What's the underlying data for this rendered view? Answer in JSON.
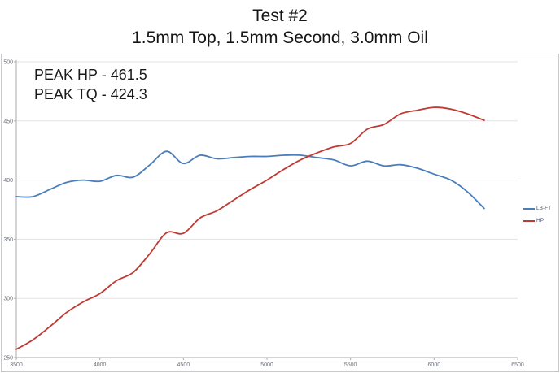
{
  "header": {
    "title": "Test #2",
    "subtitle": "1.5mm Top, 1.5mm Second, 3.0mm Oil"
  },
  "annotations": {
    "peak_hp": "PEAK HP - 461.5",
    "peak_tq": "PEAK TQ - 424.3"
  },
  "legend": {
    "items": [
      {
        "label": "LB-FT",
        "color": "#4a7ebb"
      },
      {
        "label": "HP",
        "color": "#bf3a32"
      }
    ]
  },
  "colors": {
    "torque_line": "#4a7ebb",
    "hp_line": "#bf3a32",
    "gridline": "#e3e3e3",
    "axis": "#aaaaaa",
    "tick_text": "#6b6f7a",
    "frame_border": "#c9c9c9"
  },
  "chart_data": {
    "type": "line",
    "title": "Test #2",
    "subtitle": "1.5mm Top, 1.5mm Second, 3.0mm Oil",
    "xlabel": "",
    "ylabel": "",
    "xlim": [
      3500,
      6500
    ],
    "ylim": [
      250,
      500
    ],
    "xticks": [
      3500,
      4000,
      4500,
      5000,
      5500,
      6000,
      6500
    ],
    "yticks": [
      250,
      300,
      350,
      400,
      450,
      500
    ],
    "grid": "horizontal-only",
    "legend_position": "right",
    "annotations": [
      "PEAK HP - 461.5",
      "PEAK TQ - 424.3"
    ],
    "peak_hp": 461.5,
    "peak_tq": 424.3,
    "x": [
      3500,
      3600,
      3700,
      3800,
      3900,
      4000,
      4100,
      4200,
      4300,
      4400,
      4500,
      4600,
      4700,
      4800,
      4900,
      5000,
      5100,
      5200,
      5300,
      5400,
      5500,
      5600,
      5700,
      5800,
      5900,
      6000,
      6100,
      6200,
      6300
    ],
    "series": [
      {
        "name": "LB-FT",
        "color": "#4a7ebb",
        "values": [
          386,
          386,
          392,
          398,
          400,
          399,
          404,
          402.5,
          413,
          424.3,
          414,
          421,
          418,
          419,
          420,
          420,
          421,
          421,
          419,
          417,
          412,
          416,
          412,
          413,
          410,
          405,
          400,
          390,
          376
        ]
      },
      {
        "name": "HP",
        "color": "#bf3a32",
        "values": [
          257,
          265,
          276,
          288,
          297,
          304,
          315,
          322,
          338,
          355.5,
          355,
          368,
          374,
          383,
          392,
          400,
          409,
          417,
          423,
          428,
          431,
          443,
          447,
          456,
          459,
          461.5,
          460,
          456,
          450.5
        ]
      }
    ]
  }
}
